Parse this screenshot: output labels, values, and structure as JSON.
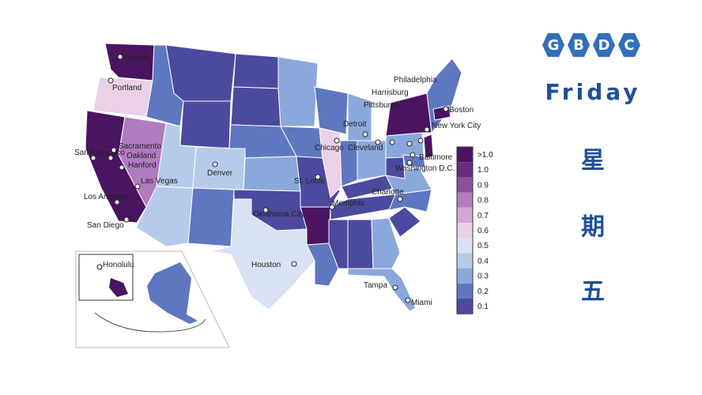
{
  "brand": {
    "letters": [
      "G",
      "B",
      "D",
      "C"
    ],
    "color": "#2f6fbb"
  },
  "day": {
    "english": "Friday",
    "chinese": [
      "星",
      "期",
      "五"
    ],
    "color": "#1f4f9a"
  },
  "map": {
    "legend": [
      ">1.0",
      "1.0",
      "0.9",
      "0.8",
      "0.7",
      "0.6",
      "0.5",
      "0.4",
      "0.3",
      "0.2",
      "0.1"
    ],
    "legend_colors": [
      "#4a1460",
      "#6b2c7e",
      "#8d4f9c",
      "#b07bbf",
      "#d3a6d6",
      "#ead1e6",
      "#d8e2f2",
      "#b5cbe9",
      "#8aa8dc",
      "#5f77c1",
      "#4b4a9e"
    ],
    "cities": [
      "Seattle",
      "Portland",
      "San Francisco",
      "Sacramento",
      "Oakland",
      "Hanford",
      "Las Vegas",
      "Los Angeles",
      "San Diego",
      "Denver",
      "Houston",
      "Oklahoma City",
      "St. Louis",
      "Memphis",
      "Chicago",
      "Detroit",
      "Cleveland",
      "Pittsburgh",
      "Harrisburg",
      "Philadelphia",
      "New York City",
      "Boston",
      "Baltimore",
      "Washington D.C.",
      "Charlotte",
      "Tampa",
      "Miami",
      "Honolulu"
    ]
  }
}
